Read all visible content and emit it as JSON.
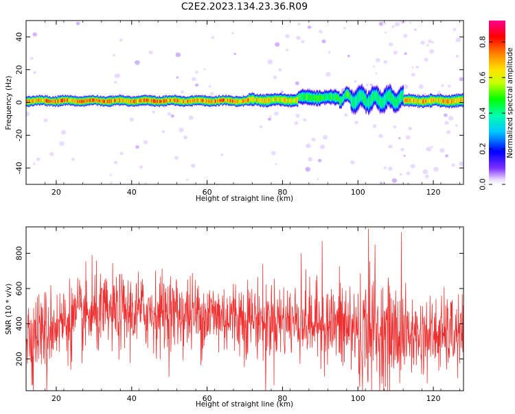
{
  "figure": {
    "title": "C2E2.2023.134.23.36.R09"
  },
  "colors": {
    "snr_line": "#f03030",
    "axis": "#000000"
  },
  "chart_data": [
    {
      "type": "heatmap",
      "title": "",
      "xlabel": "Height of straight line (km)",
      "ylabel": "Frequency (Hz)",
      "xlim": [
        12,
        128
      ],
      "ylim": [
        -50,
        50
      ],
      "x_ticks": [
        20,
        40,
        60,
        80,
        100,
        120
      ],
      "y_ticks": [
        -40,
        -20,
        0,
        20,
        40
      ],
      "colorbar": {
        "label": "Normalized spectral amplitude",
        "range": [
          0.0,
          0.92
        ],
        "ticks": [
          "0.0",
          "0.2",
          "0.4",
          "0.6",
          "0.8"
        ],
        "colormap": "rainbow"
      },
      "band_segments": [
        {
          "x": [
            12,
            71
          ],
          "freq_center": 1,
          "half_width": 2.0,
          "peak": 0.85
        },
        {
          "x": [
            71,
            84
          ],
          "freq_center": 1.5,
          "half_width": 2.5,
          "peak": 0.75
        },
        {
          "x": [
            84,
            98
          ],
          "freq_center": 3,
          "half_width": 3.0,
          "peak": 0.55
        },
        {
          "x": [
            98,
            112
          ],
          "freq_center": 2,
          "half_width": 4.5,
          "peak": 0.5
        },
        {
          "x": [
            112,
            128
          ],
          "freq_center": 1,
          "half_width": 2.5,
          "peak": 0.8
        }
      ]
    },
    {
      "type": "line",
      "title": "",
      "xlabel": "Height of straight line (km)",
      "ylabel": "SNR (10 * v/v)",
      "xlim": [
        12,
        128
      ],
      "ylim": [
        20,
        950
      ],
      "x_ticks": [
        20,
        40,
        60,
        80,
        100,
        120
      ],
      "y_ticks": [
        200,
        400,
        600,
        800
      ],
      "series": [
        {
          "mean_profile": [
            {
              "x": 12,
              "y": 330
            },
            {
              "x": 20,
              "y": 400
            },
            {
              "x": 30,
              "y": 450
            },
            {
              "x": 45,
              "y": 470
            },
            {
              "x": 60,
              "y": 450
            },
            {
              "x": 80,
              "y": 420
            },
            {
              "x": 95,
              "y": 390
            },
            {
              "x": 105,
              "y": 340
            },
            {
              "x": 115,
              "y": 330
            },
            {
              "x": 128,
              "y": 340
            }
          ],
          "spread": 110,
          "samples": 1400,
          "peaks": [
            {
              "x": 102.8,
              "y": 940
            },
            {
              "x": 111.5,
              "y": 920
            },
            {
              "x": 104.5,
              "y": 850
            },
            {
              "x": 90.5,
              "y": 870
            },
            {
              "x": 29.5,
              "y": 790
            },
            {
              "x": 85,
              "y": 800
            }
          ],
          "dips": [
            {
              "x": 17.5,
              "y": 20
            },
            {
              "x": 75.5,
              "y": 20
            },
            {
              "x": 100.5,
              "y": 40
            },
            {
              "x": 13.5,
              "y": 50
            }
          ]
        }
      ]
    }
  ]
}
